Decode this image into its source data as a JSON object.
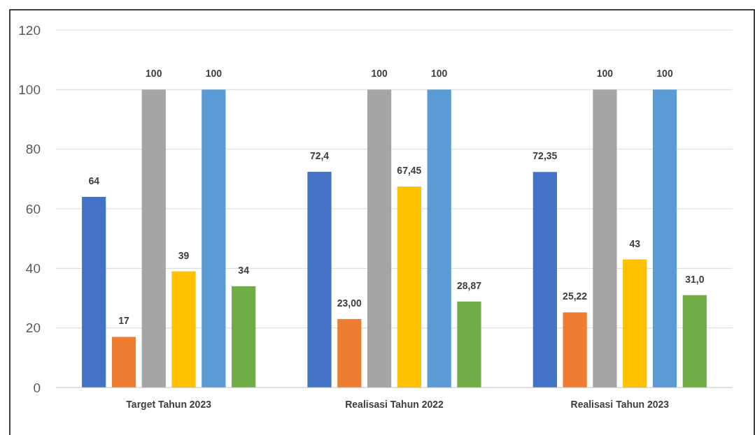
{
  "chart_data": {
    "type": "bar",
    "categories": [
      "Target Tahun 2023",
      "Realisasi Tahun 2022",
      "Realisasi Tahun 2023"
    ],
    "series": [
      {
        "color": "#4472c4",
        "values": [
          64,
          72.4,
          72.35
        ],
        "value_labels": [
          "64",
          "72,4",
          "72,35"
        ]
      },
      {
        "color": "#ed7d31",
        "values": [
          17,
          23.0,
          25.22
        ],
        "value_labels": [
          "17",
          "23,00",
          "25,22"
        ]
      },
      {
        "color": "#a5a5a5",
        "values": [
          100,
          100,
          100
        ],
        "value_labels": [
          "100",
          "100",
          "100"
        ]
      },
      {
        "color": "#ffc000",
        "values": [
          39,
          67.45,
          43
        ],
        "value_labels": [
          "39",
          "67,45",
          "43"
        ]
      },
      {
        "color": "#5b9bd5",
        "values": [
          100,
          100,
          100
        ],
        "value_labels": [
          "100",
          "100",
          "100"
        ]
      },
      {
        "color": "#70ad47",
        "values": [
          34,
          28.87,
          31.0
        ],
        "value_labels": [
          "34",
          "28,87",
          "31,0"
        ]
      }
    ],
    "ylim": [
      0,
      120
    ],
    "yticks": [
      0,
      20,
      40,
      60,
      80,
      100,
      120
    ],
    "grid": "y"
  }
}
